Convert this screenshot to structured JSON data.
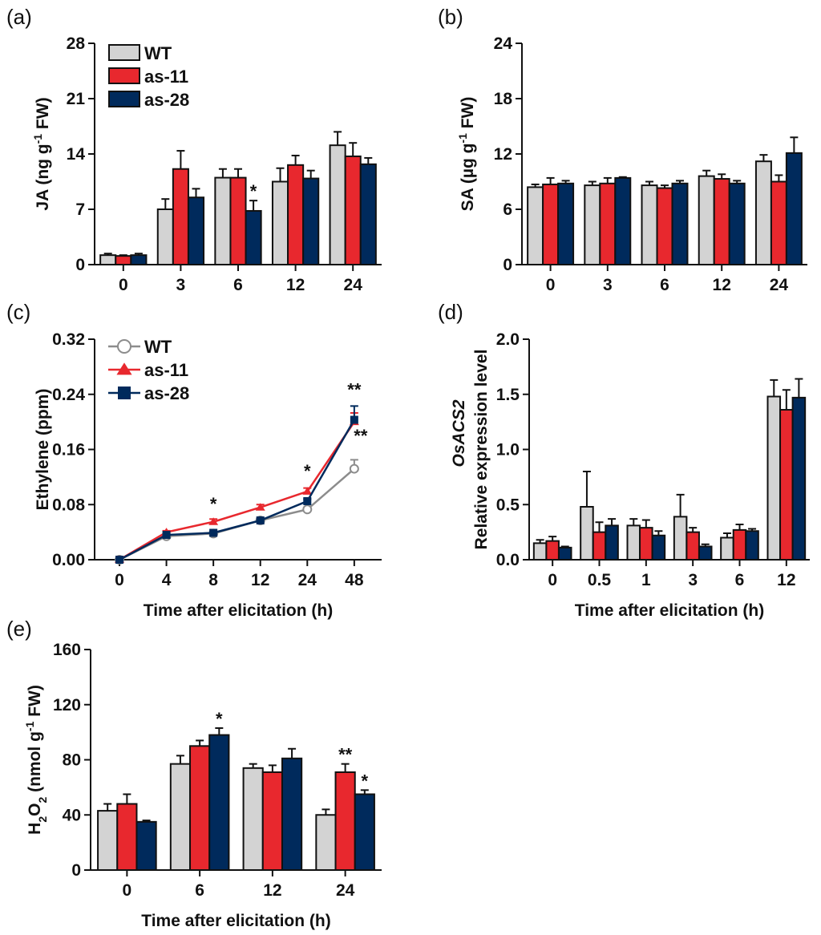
{
  "colors": {
    "WT": "#d3d3d3",
    "as-11": "#e8282e",
    "as-28": "#002a5c",
    "WT_line": "#8c8c8c"
  },
  "legend": [
    "WT",
    "as-11",
    "as-28"
  ],
  "chart_data": [
    {
      "id": "a",
      "panel_label": "(a)",
      "type": "bar",
      "title": "",
      "xlabel": "",
      "ylabel": "JA (ng g-1 FW)",
      "ylabel_parts": {
        "main": "JA (ng g",
        "sup": "-1",
        "tail": " FW)"
      },
      "categories": [
        "0",
        "3",
        "6",
        "12",
        "24"
      ],
      "ylim": [
        0,
        28
      ],
      "yticks": [
        "0",
        "7",
        "14",
        "21",
        "28"
      ],
      "legend_placement": "top-left",
      "series": [
        {
          "name": "WT",
          "values": [
            1.2,
            7.0,
            11.0,
            10.5,
            15.1
          ],
          "errors": [
            0.2,
            1.3,
            1.1,
            1.7,
            1.7
          ]
        },
        {
          "name": "as-11",
          "values": [
            1.1,
            12.1,
            11.0,
            12.6,
            13.7
          ],
          "errors": [
            0.1,
            2.3,
            1.1,
            1.2,
            1.7
          ]
        },
        {
          "name": "as-28",
          "values": [
            1.2,
            8.5,
            6.8,
            10.9,
            12.7
          ],
          "errors": [
            0.2,
            1.1,
            1.3,
            1.0,
            0.8
          ]
        }
      ],
      "annotations": [
        {
          "category": "6",
          "series": "as-28",
          "text": "*"
        }
      ]
    },
    {
      "id": "b",
      "panel_label": "(b)",
      "type": "bar",
      "title": "",
      "xlabel": "",
      "ylabel": "SA (µg g-1 FW)",
      "ylabel_parts": {
        "main": "SA (µg g",
        "sup": "-1",
        "tail": " FW)"
      },
      "categories": [
        "0",
        "3",
        "6",
        "12",
        "24"
      ],
      "ylim": [
        0,
        24
      ],
      "yticks": [
        "0",
        "6",
        "12",
        "18",
        "24"
      ],
      "series": [
        {
          "name": "WT",
          "values": [
            8.4,
            8.6,
            8.6,
            9.6,
            11.2
          ],
          "errors": [
            0.3,
            0.4,
            0.4,
            0.6,
            0.7
          ]
        },
        {
          "name": "as-11",
          "values": [
            8.7,
            8.8,
            8.3,
            9.3,
            9.0
          ],
          "errors": [
            0.7,
            0.6,
            0.3,
            0.5,
            0.7
          ]
        },
        {
          "name": "as-28",
          "values": [
            8.8,
            9.4,
            8.8,
            8.8,
            12.1
          ],
          "errors": [
            0.3,
            0.1,
            0.3,
            0.3,
            1.7
          ]
        }
      ],
      "annotations": []
    },
    {
      "id": "c",
      "panel_label": "(c)",
      "type": "line",
      "title": "",
      "xlabel": "Time after elicitation (h)",
      "ylabel": "Ethylene (ppm)",
      "categories": [
        "0",
        "4",
        "8",
        "12",
        "24",
        "48"
      ],
      "ylim": [
        0,
        0.32
      ],
      "yticks": [
        "0.00",
        "0.08",
        "0.16",
        "0.24",
        "0.32"
      ],
      "legend_placement": "top-left",
      "series": [
        {
          "name": "WT",
          "marker": "open-circle",
          "values": [
            0,
            0.034,
            0.038,
            0.057,
            0.073,
            0.132
          ],
          "errors": [
            0,
            0.002,
            0.002,
            0.004,
            0.003,
            0.013
          ]
        },
        {
          "name": "as-11",
          "marker": "triangle",
          "values": [
            0,
            0.04,
            0.055,
            0.076,
            0.099,
            0.2
          ],
          "errors": [
            0,
            0.002,
            0.004,
            0.004,
            0.005,
            0.013
          ]
        },
        {
          "name": "as-28",
          "marker": "square",
          "values": [
            0,
            0.036,
            0.039,
            0.057,
            0.085,
            0.203
          ],
          "errors": [
            0,
            0.002,
            0.002,
            0.002,
            0.003,
            0.02
          ]
        }
      ],
      "annotations": [
        {
          "category": "8",
          "text": "*",
          "value": 0.072
        },
        {
          "category": "24",
          "text": "*",
          "value": 0.12
        },
        {
          "category": "48",
          "text": "**",
          "value": 0.238
        },
        {
          "category": "48",
          "text": "**",
          "value": 0.171,
          "offset": "right"
        }
      ]
    },
    {
      "id": "d",
      "panel_label": "(d)",
      "type": "bar",
      "title": "",
      "xlabel": "Time after elicitation (h)",
      "ylabel": "OsACS2 Relative expression level",
      "ylabel_lines": [
        "OsACS2",
        "Relative expression level"
      ],
      "categories": [
        "0",
        "0.5",
        "1",
        "3",
        "6",
        "12"
      ],
      "ylim": [
        0,
        2.0
      ],
      "yticks": [
        "0.0",
        "0.5",
        "1.0",
        "1.5",
        "2.0"
      ],
      "series": [
        {
          "name": "WT",
          "values": [
            0.15,
            0.48,
            0.31,
            0.39,
            0.2,
            1.48
          ],
          "errors": [
            0.03,
            0.32,
            0.06,
            0.2,
            0.04,
            0.15
          ]
        },
        {
          "name": "as-11",
          "values": [
            0.17,
            0.25,
            0.29,
            0.25,
            0.27,
            1.36
          ],
          "errors": [
            0.04,
            0.09,
            0.07,
            0.04,
            0.05,
            0.18
          ]
        },
        {
          "name": "as-28",
          "values": [
            0.11,
            0.31,
            0.22,
            0.12,
            0.26,
            1.47
          ],
          "errors": [
            0.01,
            0.06,
            0.04,
            0.02,
            0.02,
            0.17
          ]
        }
      ],
      "annotations": []
    },
    {
      "id": "e",
      "panel_label": "(e)",
      "type": "bar",
      "title": "",
      "xlabel": "Time after elicitation (h)",
      "ylabel": "H2O2 (nmol g-1 FW)",
      "categories": [
        "0",
        "6",
        "12",
        "24"
      ],
      "ylim": [
        0,
        160
      ],
      "yticks": [
        "0",
        "40",
        "80",
        "120",
        "160"
      ],
      "series": [
        {
          "name": "WT",
          "values": [
            43,
            77,
            74,
            40
          ],
          "errors": [
            5,
            6,
            3,
            4
          ]
        },
        {
          "name": "as-11",
          "values": [
            48,
            90,
            71,
            71
          ],
          "errors": [
            7,
            4,
            5,
            6
          ]
        },
        {
          "name": "as-28",
          "values": [
            35,
            98,
            81,
            55
          ],
          "errors": [
            1,
            5,
            7,
            3
          ]
        }
      ],
      "annotations": [
        {
          "category": "6",
          "series": "as-28",
          "text": "*"
        },
        {
          "category": "24",
          "series": "as-11",
          "text": "**"
        },
        {
          "category": "24",
          "series": "as-28",
          "text": "*"
        }
      ]
    }
  ]
}
